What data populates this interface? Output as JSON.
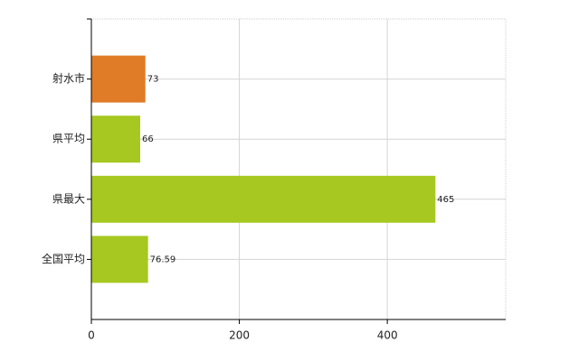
{
  "chart_data": {
    "type": "hbar",
    "categories": [
      "射水市",
      "県平均",
      "県最大",
      "全国平均"
    ],
    "values": [
      73,
      66,
      465,
      76.59
    ],
    "colors": [
      "#e07b27",
      "#a6c821",
      "#a6c821",
      "#a6c821"
    ],
    "xlim": [
      0,
      560
    ],
    "xticks": [
      0,
      200,
      400
    ],
    "grid": true
  }
}
